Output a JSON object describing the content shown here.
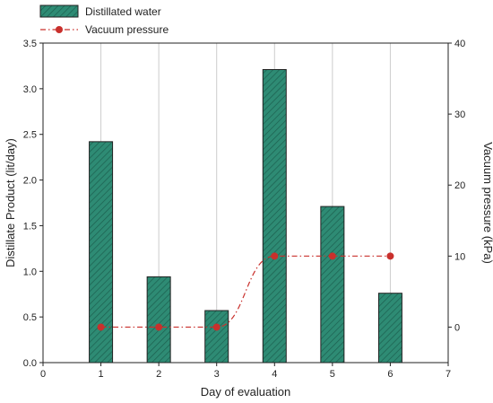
{
  "chart_data": {
    "type": "bar",
    "xlabel": "Day of evaluation",
    "ylabel": "Distillate Product (lit/day)",
    "y2label": "Vacuum pressure (kPa)",
    "xlim": [
      0,
      7
    ],
    "ylim": [
      0,
      3.5
    ],
    "y2lim": [
      -5,
      40
    ],
    "x_ticks": [
      0,
      1,
      2,
      3,
      4,
      5,
      6,
      7
    ],
    "y_ticks": [
      0.0,
      0.5,
      1.0,
      1.5,
      2.0,
      2.5,
      3.0,
      3.5
    ],
    "y_tick_labels": [
      "0.0",
      "0.5",
      "1.0",
      "1.5",
      "2.0",
      "2.5",
      "3.0",
      "3.5"
    ],
    "y2_ticks": [
      0,
      10,
      20,
      30,
      40
    ],
    "grid": "vertical lines at day positions",
    "legend_position": "top-left, above plot",
    "series": [
      {
        "name": "Distillated water",
        "kind": "bar",
        "axis": "left",
        "color": "#2e8b74",
        "x": [
          1,
          2,
          3,
          4,
          5,
          6
        ],
        "values": [
          2.42,
          0.94,
          0.57,
          3.21,
          1.71,
          0.76
        ]
      },
      {
        "name": "Vacuum pressure",
        "kind": "line",
        "axis": "right",
        "color": "#c9302c",
        "line_style": "dash-dot",
        "x": [
          1,
          2,
          3,
          4,
          5,
          6
        ],
        "values": [
          0,
          0,
          0,
          10,
          10,
          10
        ]
      }
    ]
  }
}
